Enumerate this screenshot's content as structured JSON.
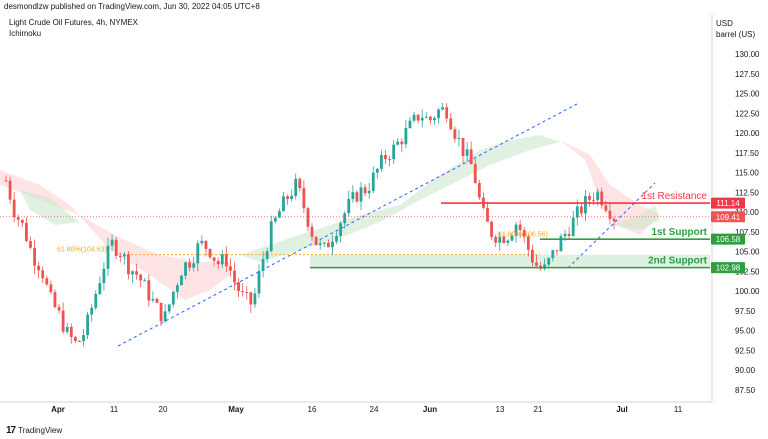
{
  "header": {
    "published": "desmondlzw published on TradingView.com, Jun 30, 2022 04:05 UTC+8",
    "symbol": "Light Crude Oil Futures, 4h, NYMEX",
    "indicator": "Ichimoku"
  },
  "price_axis": {
    "unit_line1": "USD",
    "unit_line2": "barrel (US)",
    "ticks": [
      "130.00",
      "127.50",
      "125.00",
      "122.50",
      "120.00",
      "117.50",
      "115.00",
      "112.50",
      "110.00",
      "107.50",
      "105.00",
      "102.50",
      "100.00",
      "97.50",
      "95.00",
      "92.50",
      "90.00",
      "87.50"
    ]
  },
  "time_axis": {
    "ticks": [
      "Apr",
      "11",
      "20",
      "May",
      "16",
      "24",
      "Jun",
      "13",
      "21",
      "Jul",
      "11"
    ]
  },
  "annotations": {
    "resistance_1": "1st Resistance",
    "support_1": "1st Support",
    "support_2": "2nd Support",
    "fib_left": "61.80%(104.63)",
    "fib_right": "61.80%(106.56)"
  },
  "price_labels": {
    "resistance": "111.14",
    "current": "109.41",
    "support_1": "106.58",
    "support_2": "102.98"
  },
  "footer": {
    "brand": "TradingView",
    "mark": "17"
  },
  "colors": {
    "up": "#26a69a",
    "down": "#ef5350",
    "resistance": "#f23645",
    "support": "#2e9e3f",
    "cloud_green": "#c8e6c9",
    "cloud_red": "#ffcdd2",
    "trend": "#2962ff",
    "fib": "#f5a623"
  },
  "chart_data": {
    "type": "candlestick",
    "ylim": [
      86,
      131
    ],
    "levels": {
      "resistance": 111.14,
      "support_1": 106.58,
      "support_2": 102.98,
      "current": 109.41
    },
    "path": [
      114,
      110,
      108,
      104.6,
      103,
      99,
      97,
      94.5,
      93.2,
      95,
      99,
      103,
      106,
      105,
      103,
      102,
      100,
      98,
      96.5,
      100,
      103,
      104,
      106,
      105.5,
      103.5,
      104,
      101,
      99,
      98.3,
      103.5,
      107.5,
      110,
      112,
      113.5,
      110,
      106.5,
      105,
      107,
      109,
      111,
      112.5,
      113,
      115,
      117,
      118,
      119.5,
      121,
      122.5,
      121.5,
      122.8,
      123,
      120,
      117.5,
      115.5,
      110,
      107.5,
      106.8,
      107.2,
      108.8,
      106,
      103.5,
      102.5,
      104.5,
      106.5,
      108.2,
      110,
      111.5,
      112.6,
      111.2,
      109.4
    ]
  }
}
